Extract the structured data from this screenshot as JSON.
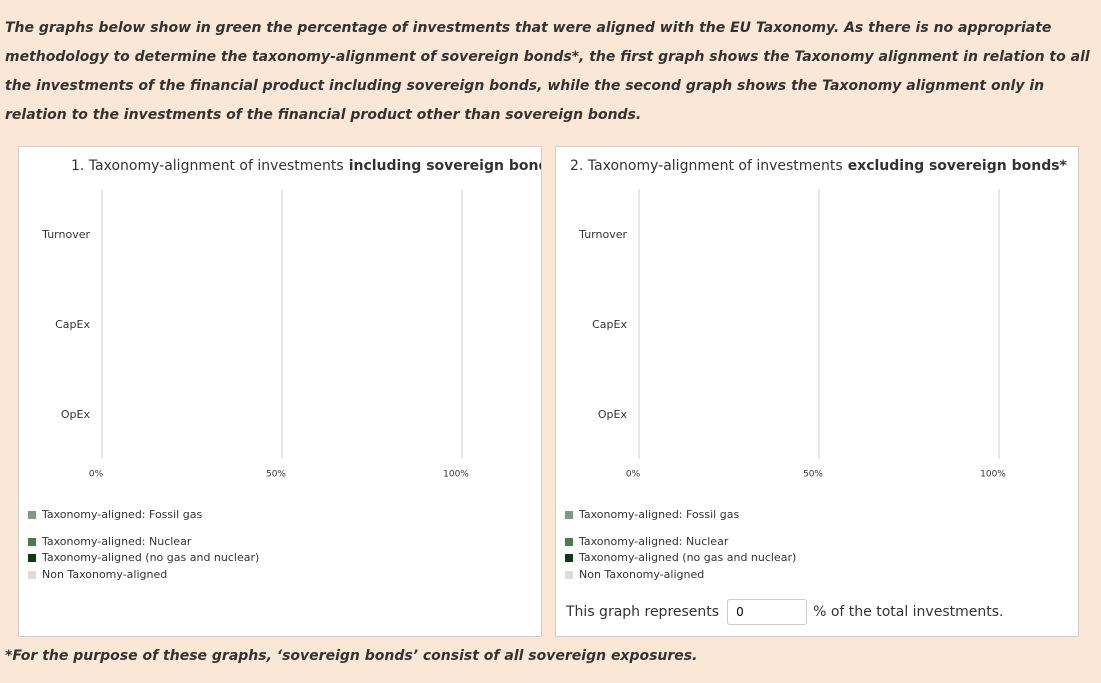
{
  "intro": "The graphs below show in green the percentage of investments that were aligned with the EU Taxonomy. As there is no appropriate methodology to determine the taxonomy-alignment of sovereign bonds*, the first graph shows the Taxonomy alignment in relation to all the investments of the financial product including sovereign bonds, while the second graph shows the Taxonomy alignment only in relation to the investments of the financial product other than sovereign bonds.",
  "chart_data": [
    {
      "type": "bar",
      "title": "1. Taxonomy-alignment of investments",
      "title_bold": "including sovereign bonds",
      "categories": [
        "Turnover",
        "CapEx",
        "OpEx"
      ],
      "xlim": [
        0,
        100
      ],
      "xticks": [
        {
          "value": 0,
          "label": "0%"
        },
        {
          "value": 50,
          "label": "50%"
        },
        {
          "value": 100,
          "label": "100%"
        }
      ],
      "grid": true,
      "legend": [
        {
          "name": "Taxonomy-aligned: Fossil gas",
          "color": "#7f9a84"
        },
        {
          "name": "Taxonomy-aligned: Nuclear",
          "color": "#4d7a4f"
        },
        {
          "name": "Taxonomy-aligned (no gas and nuclear)",
          "color": "#0f3a12"
        },
        {
          "name": "Non Taxonomy-aligned",
          "color": "#dcdcdc"
        }
      ]
    },
    {
      "type": "bar",
      "title": "2. Taxonomy-alignment of investments",
      "title_bold": "excluding sovereign bonds*",
      "categories": [
        "Turnover",
        "CapEx",
        "OpEx"
      ],
      "xlim": [
        0,
        100
      ],
      "xticks": [
        {
          "value": 0,
          "label": "0%"
        },
        {
          "value": 50,
          "label": "50%"
        },
        {
          "value": 100,
          "label": "100%"
        }
      ],
      "grid": true,
      "legend": [
        {
          "name": "Taxonomy-aligned: Fossil gas",
          "color": "#7f9a84"
        },
        {
          "name": "Taxonomy-aligned: Nuclear",
          "color": "#4d7a4f"
        },
        {
          "name": "Taxonomy-aligned (no gas and nuclear)",
          "color": "#0f3a12"
        },
        {
          "name": "Non Taxonomy-aligned",
          "color": "#dcdcdc"
        }
      ]
    }
  ],
  "note": {
    "prefix": "This graph represents",
    "input": "0",
    "suffix": "% of the total investments."
  },
  "footnote": "*For the purpose of these graphs, ‘sovereign bonds’ consist of all sovereign exposures."
}
